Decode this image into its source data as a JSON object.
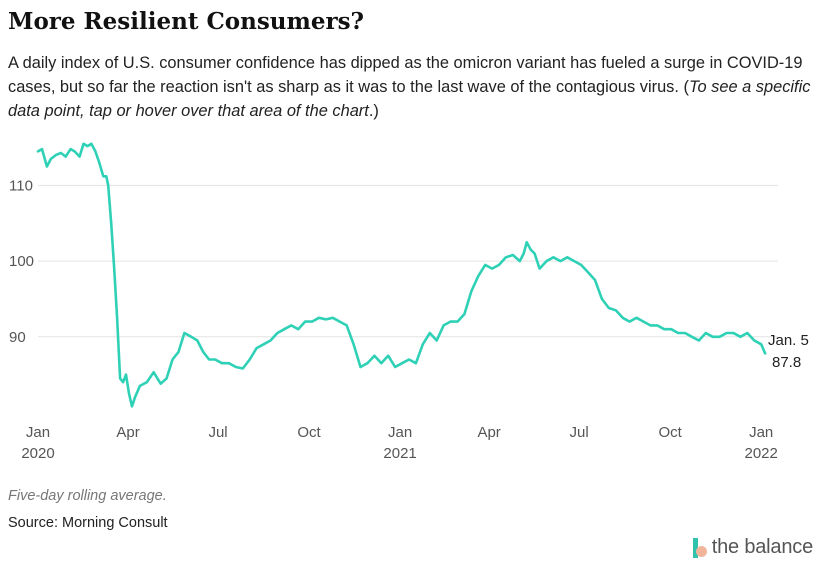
{
  "title": "More Resilient Consumers?",
  "subtitle": {
    "text": "A daily index of U.S. consumer confidence has dipped as the omicron variant has fueled a surge in COVID-19 cases, but so far the reaction isn't as sharp as it was to the last wave of the contagious virus. (",
    "note": "To see a specific data point, tap or hover over that area of the chart",
    "tail": ".)"
  },
  "footnote": "Five-day rolling average.",
  "source": "Source: Morning Consult",
  "brand": {
    "name": "the balance",
    "colors": {
      "bar": "#2fc2ac",
      "dot": "#f2b59c"
    }
  },
  "chart_data": {
    "type": "line",
    "line_color": "#2fd1b6",
    "grid": true,
    "ylim": [
      79,
      116
    ],
    "yticks": [
      90,
      100,
      110
    ],
    "xlim": [
      "2020-01-01",
      "2022-01-18"
    ],
    "xticks": [
      {
        "date": "2020-01-01",
        "label": [
          "Jan",
          "2020"
        ]
      },
      {
        "date": "2020-04-01",
        "label": [
          "Apr"
        ]
      },
      {
        "date": "2020-07-01",
        "label": [
          "Jul"
        ]
      },
      {
        "date": "2020-10-01",
        "label": [
          "Oct"
        ]
      },
      {
        "date": "2021-01-01",
        "label": [
          "Jan",
          "2021"
        ]
      },
      {
        "date": "2021-04-01",
        "label": [
          "Apr"
        ]
      },
      {
        "date": "2021-07-01",
        "label": [
          "Jul"
        ]
      },
      {
        "date": "2021-10-01",
        "label": [
          "Oct"
        ]
      },
      {
        "date": "2022-01-01",
        "label": [
          "Jan",
          "2022"
        ]
      }
    ],
    "annotation": {
      "date_label": "Jan. 5",
      "value_label": "87.8"
    },
    "series": [
      {
        "x": [
          "2020-01-01",
          "2020-01-05",
          "2020-01-10",
          "2020-01-14",
          "2020-01-19",
          "2020-01-24",
          "2020-01-29",
          "2020-02-03",
          "2020-02-07",
          "2020-02-12",
          "2020-02-16",
          "2020-02-20",
          "2020-02-24",
          "2020-02-28",
          "2020-03-03",
          "2020-03-07",
          "2020-03-10",
          "2020-03-12",
          "2020-03-15",
          "2020-03-18",
          "2020-03-21",
          "2020-03-24",
          "2020-03-27",
          "2020-03-30",
          "2020-04-02",
          "2020-04-05",
          "2020-04-08",
          "2020-04-13",
          "2020-04-20",
          "2020-04-27",
          "2020-05-04",
          "2020-05-10",
          "2020-05-16",
          "2020-05-22",
          "2020-05-28",
          "2020-06-04",
          "2020-06-10",
          "2020-06-16",
          "2020-06-22",
          "2020-06-28",
          "2020-07-05",
          "2020-07-12",
          "2020-07-19",
          "2020-07-26",
          "2020-08-02",
          "2020-08-09",
          "2020-08-16",
          "2020-08-23",
          "2020-08-30",
          "2020-09-06",
          "2020-09-13",
          "2020-09-20",
          "2020-09-27",
          "2020-10-04",
          "2020-10-11",
          "2020-10-18",
          "2020-10-25",
          "2020-11-01",
          "2020-11-08",
          "2020-11-15",
          "2020-11-22",
          "2020-11-29",
          "2020-12-06",
          "2020-12-13",
          "2020-12-20",
          "2020-12-27",
          "2021-01-03",
          "2021-01-10",
          "2021-01-17",
          "2021-01-24",
          "2021-01-31",
          "2021-02-07",
          "2021-02-14",
          "2021-02-21",
          "2021-02-28",
          "2021-03-07",
          "2021-03-14",
          "2021-03-21",
          "2021-03-28",
          "2021-04-04",
          "2021-04-11",
          "2021-04-18",
          "2021-04-25",
          "2021-05-02",
          "2021-05-06",
          "2021-05-09",
          "2021-05-13",
          "2021-05-17",
          "2021-05-22",
          "2021-05-29",
          "2021-06-05",
          "2021-06-12",
          "2021-06-19",
          "2021-06-26",
          "2021-07-03",
          "2021-07-10",
          "2021-07-17",
          "2021-07-24",
          "2021-07-31",
          "2021-08-07",
          "2021-08-14",
          "2021-08-21",
          "2021-08-28",
          "2021-09-04",
          "2021-09-11",
          "2021-09-18",
          "2021-09-25",
          "2021-10-02",
          "2021-10-09",
          "2021-10-16",
          "2021-10-23",
          "2021-10-30",
          "2021-11-06",
          "2021-11-13",
          "2021-11-20",
          "2021-11-27",
          "2021-12-04",
          "2021-12-11",
          "2021-12-18",
          "2021-12-25",
          "2022-01-01",
          "2022-01-05"
        ],
        "y": [
          114.5,
          114.8,
          112.5,
          113.5,
          114.0,
          114.3,
          113.8,
          114.8,
          114.5,
          113.8,
          115.5,
          115.2,
          115.5,
          114.5,
          113.0,
          111.2,
          111.2,
          110.0,
          105.0,
          99.0,
          92.5,
          84.5,
          84.0,
          85.0,
          82.5,
          80.8,
          82.0,
          83.5,
          84.0,
          85.3,
          83.8,
          84.5,
          87.0,
          88.0,
          90.5,
          90.0,
          89.5,
          88.0,
          87.0,
          87.0,
          86.5,
          86.5,
          86.0,
          85.8,
          87.0,
          88.5,
          89.0,
          89.5,
          90.5,
          91.0,
          91.5,
          91.0,
          92.0,
          92.0,
          92.5,
          92.3,
          92.5,
          92.0,
          91.5,
          89.0,
          86.0,
          86.5,
          87.5,
          86.5,
          87.5,
          86.0,
          86.5,
          87.0,
          86.5,
          89.0,
          90.5,
          89.5,
          91.5,
          92.0,
          92.0,
          93.0,
          96.0,
          98.0,
          99.5,
          99.0,
          99.5,
          100.5,
          100.8,
          100.0,
          101.0,
          102.5,
          101.5,
          101.0,
          99.0,
          100.0,
          100.5,
          100.0,
          100.5,
          100.0,
          99.5,
          98.5,
          97.5,
          95.0,
          93.8,
          93.5,
          92.5,
          92.0,
          92.5,
          92.0,
          91.5,
          91.5,
          91.0,
          91.0,
          90.5,
          90.5,
          90.0,
          89.5,
          90.5,
          90.0,
          90.0,
          90.5,
          90.5,
          90.0,
          90.5,
          89.5,
          89.0,
          87.8
        ]
      }
    ]
  }
}
